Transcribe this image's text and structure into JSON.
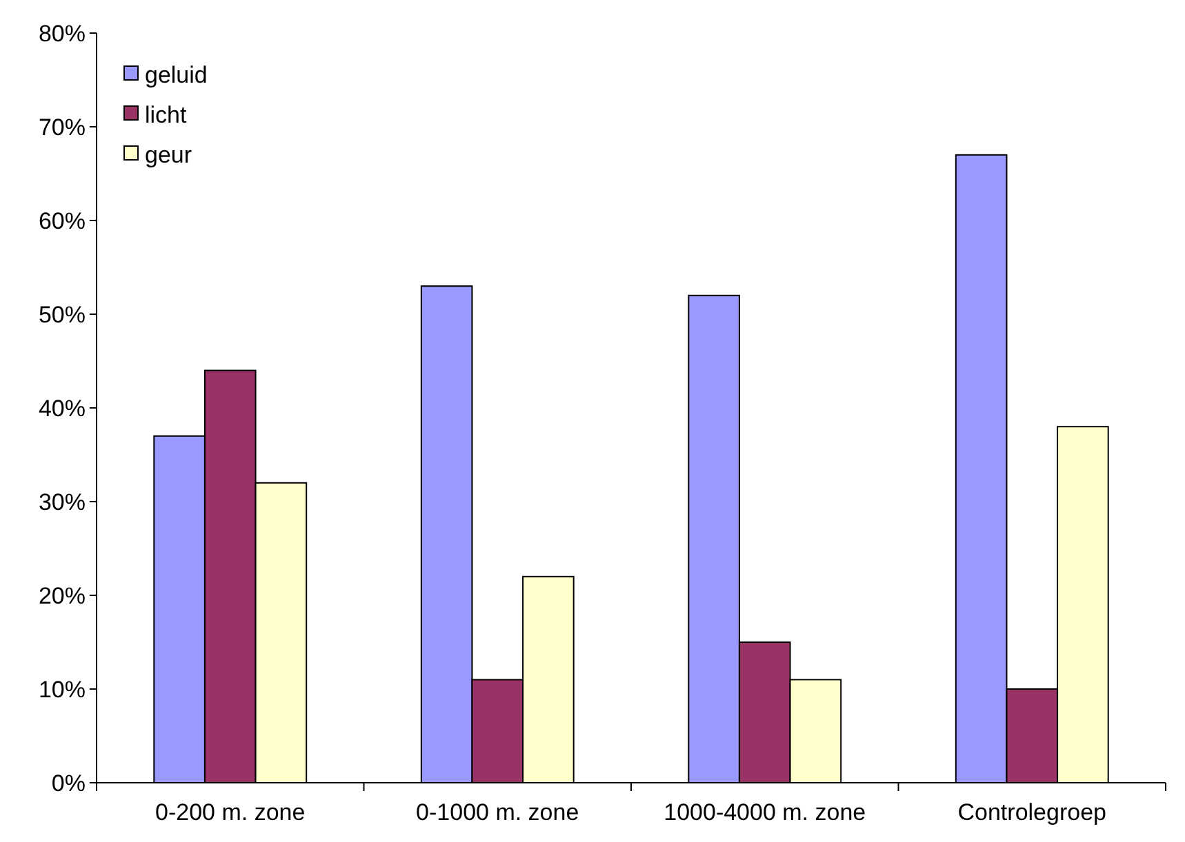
{
  "chart_data": {
    "type": "bar",
    "categories": [
      "0-200 m. zone",
      "0-1000 m. zone",
      "1000-4000 m. zone",
      "Controlegroep"
    ],
    "series": [
      {
        "name": "geluid",
        "color": "#9999ff",
        "values": [
          37,
          53,
          52,
          67
        ]
      },
      {
        "name": "licht",
        "color": "#993366",
        "values": [
          44,
          11,
          15,
          10
        ]
      },
      {
        "name": "geur",
        "color": "#ffffcc",
        "values": [
          32,
          22,
          11,
          38
        ]
      }
    ],
    "ylim": [
      0,
      80
    ],
    "yticks": [
      {
        "value": 0,
        "label": "0%"
      },
      {
        "value": 10,
        "label": "10%"
      },
      {
        "value": 20,
        "label": "20%"
      },
      {
        "value": 30,
        "label": "30%"
      },
      {
        "value": 40,
        "label": "40%"
      },
      {
        "value": 50,
        "label": "50%"
      },
      {
        "value": 60,
        "label": "60%"
      },
      {
        "value": 70,
        "label": "70%"
      },
      {
        "value": 80,
        "label": "80%"
      }
    ],
    "grid": false,
    "legend": "top left"
  }
}
